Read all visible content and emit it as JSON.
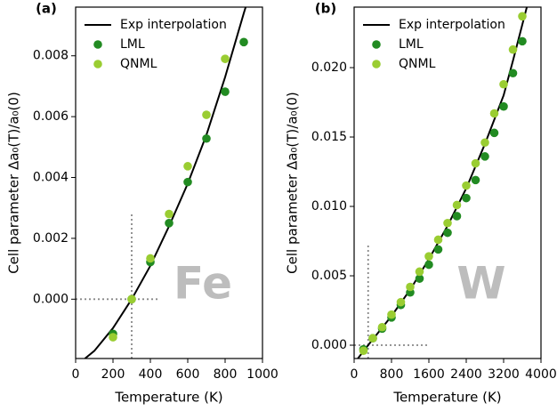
{
  "chart_data": [
    {
      "type": "scatter",
      "panel_label": "(a)",
      "annotation": "Fe",
      "x_label": "Temperature (K)",
      "y_label": "Cell parameter Δa₀(T)/a₀(0)",
      "xlim": [
        0,
        1000
      ],
      "ylim": [
        -0.00195,
        0.0096
      ],
      "xticks": [
        0,
        200,
        400,
        600,
        800,
        1000
      ],
      "yticks": [
        {
          "value": 0,
          "label": "0.000"
        },
        {
          "value": 0.002,
          "label": "0.002"
        },
        {
          "value": 0.004,
          "label": "0.004"
        },
        {
          "value": 0.006,
          "label": "0.006"
        },
        {
          "value": 0.008,
          "label": "0.008"
        }
      ],
      "legend": "upper left",
      "vline": {
        "x": 300,
        "ymax": 0.00286
      },
      "hline": {
        "y": 0,
        "xmax": 450
      },
      "series": [
        {
          "name": "Exp interpolation",
          "type": "line",
          "color": "#000000",
          "x": [
            50,
            100,
            200,
            300,
            400,
            500,
            600,
            700,
            800,
            900,
            910
          ],
          "values": [
            -0.00195,
            -0.0017,
            -0.00095,
            0,
            0.0011,
            0.0024,
            0.0038,
            0.0054,
            0.0073,
            0.0094,
            0.0096
          ]
        },
        {
          "name": "LML",
          "type": "scatter",
          "color": "#228b22",
          "x": [
            200,
            300,
            400,
            500,
            600,
            700,
            800,
            900
          ],
          "values": [
            -0.00114,
            0,
            0.00122,
            0.0025,
            0.00385,
            0.00528,
            0.00682,
            0.00845
          ]
        },
        {
          "name": "QNML",
          "type": "scatter",
          "color": "#9acd32",
          "x": [
            200,
            300,
            400,
            500,
            600,
            700,
            800
          ],
          "values": [
            -0.00125,
            0,
            0.00134,
            0.0028,
            0.00437,
            0.00606,
            0.0079
          ]
        }
      ]
    },
    {
      "type": "scatter",
      "panel_label": "(b)",
      "annotation": "W",
      "x_label": "Temperature (K)",
      "y_label": "Cell parameter Δa₀(T)/a₀(0)",
      "xlim": [
        0,
        4000
      ],
      "ylim": [
        -0.00096,
        0.02436
      ],
      "xticks": [
        0,
        800,
        1600,
        2400,
        3200,
        4000
      ],
      "yticks": [
        {
          "value": 0,
          "label": "0.000"
        },
        {
          "value": 0.005,
          "label": "0.005"
        },
        {
          "value": 0.01,
          "label": "0.010"
        },
        {
          "value": 0.015,
          "label": "0.015"
        },
        {
          "value": 0.02,
          "label": "0.020"
        }
      ],
      "legend": "upper left",
      "vline": {
        "x": 300,
        "ymax": 0.00718
      },
      "hline": {
        "y": 0,
        "xmax": 1600
      },
      "series": [
        {
          "name": "Exp interpolation",
          "type": "line",
          "color": "#000000",
          "x": [
            80,
            300,
            800,
            1200,
            1600,
            2000,
            2400,
            2800,
            3200,
            3400,
            3700
          ],
          "values": [
            -0.00096,
            0,
            0.0021,
            0.004,
            0.0062,
            0.0086,
            0.0113,
            0.0145,
            0.018,
            0.0205,
            0.0244
          ]
        },
        {
          "name": "LML",
          "type": "scatter",
          "color": "#228b22",
          "x": [
            200,
            400,
            600,
            800,
            1000,
            1200,
            1400,
            1600,
            1800,
            2000,
            2200,
            2400,
            2600,
            2800,
            3000,
            3200,
            3400,
            3600
          ],
          "values": [
            -0.0003,
            0.0005,
            0.0012,
            0.002,
            0.0029,
            0.0038,
            0.0048,
            0.0058,
            0.0069,
            0.0081,
            0.0093,
            0.0106,
            0.0119,
            0.0136,
            0.0153,
            0.0172,
            0.0196,
            0.0219
          ]
        },
        {
          "name": "QNML",
          "type": "scatter",
          "color": "#9acd32",
          "x": [
            200,
            400,
            600,
            800,
            1000,
            1200,
            1400,
            1600,
            1800,
            2000,
            2200,
            2400,
            2600,
            2800,
            3000,
            3200,
            3400,
            3600
          ],
          "values": [
            -0.0004,
            0.0005,
            0.0013,
            0.0022,
            0.0031,
            0.0042,
            0.0053,
            0.0064,
            0.0076,
            0.0088,
            0.0101,
            0.0115,
            0.0131,
            0.0146,
            0.0167,
            0.0188,
            0.0213,
            0.0237
          ]
        }
      ]
    }
  ]
}
